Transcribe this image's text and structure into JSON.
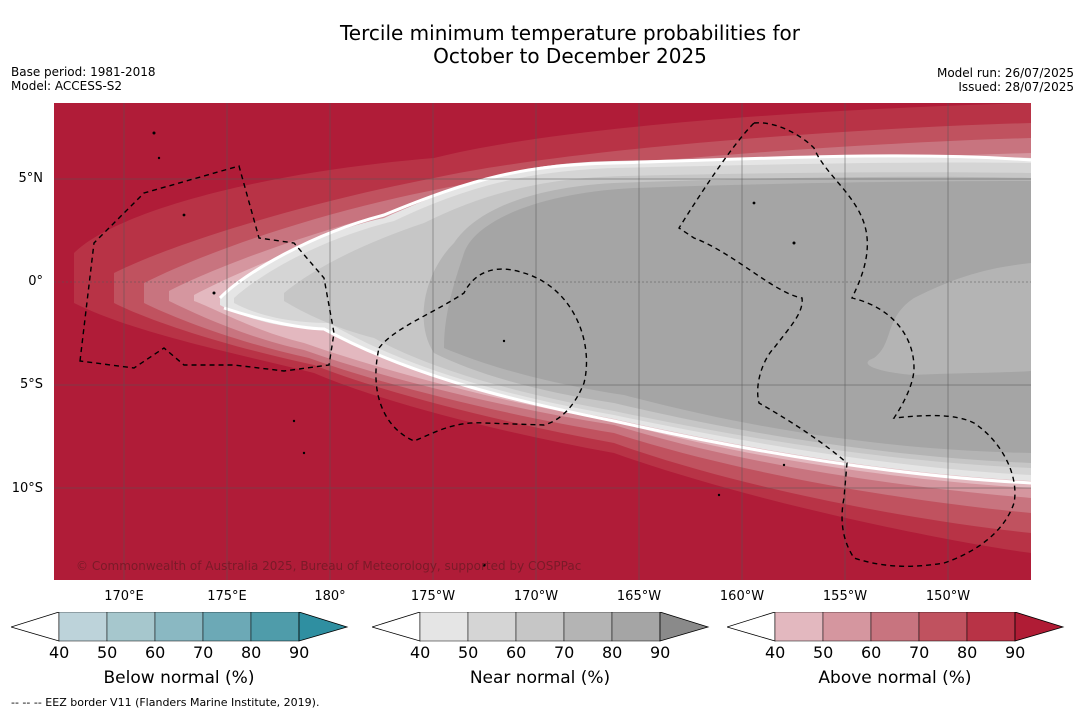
{
  "title_line1": "Tercile minimum temperature probabilities for",
  "title_line2": "October to December 2025",
  "meta_left": {
    "base_period": "Base period: 1981-2018",
    "model": "Model: ACCESS-S2"
  },
  "meta_right": {
    "model_run": "Model run: 26/07/2025",
    "issued": "Issued: 28/07/2025"
  },
  "map": {
    "lat_labels": [
      "5°N",
      "0°",
      "5°S",
      "10°S"
    ],
    "lon_labels": [
      "170°E",
      "175°E",
      "180°",
      "175°W",
      "170°W",
      "165°W",
      "160°W",
      "155°W",
      "150°W"
    ],
    "watermark": "© Commonwealth of Australia 2025, Bureau of Meteorology, supported by COSPPac",
    "eez_border_style": "dashed"
  },
  "colorbars": [
    {
      "name": "below",
      "title": "Below normal (%)",
      "ticks": [
        "40",
        "50",
        "60",
        "70",
        "80",
        "90"
      ],
      "colors": [
        "#bdd3da",
        "#a6c7cd",
        "#8ab8c2",
        "#6ca9b6",
        "#4f9caa",
        "#2f8fa1"
      ]
    },
    {
      "name": "near",
      "title": "Near normal (%)",
      "ticks": [
        "40",
        "50",
        "60",
        "70",
        "80",
        "90"
      ],
      "colors": [
        "#e5e5e5",
        "#d5d5d5",
        "#c6c6c6",
        "#b4b4b4",
        "#a5a5a5",
        "#8a8a8a"
      ]
    },
    {
      "name": "above",
      "title": "Above normal (%)",
      "ticks": [
        "40",
        "50",
        "60",
        "70",
        "80",
        "90"
      ],
      "colors": [
        "#e3b8bf",
        "#d5969f",
        "#c8747f",
        "#c0525f",
        "#b83346",
        "#b01c35"
      ]
    }
  ],
  "footer": "--  --  -- EEZ border V11 (Flanders Marine Institute, 2019)."
}
